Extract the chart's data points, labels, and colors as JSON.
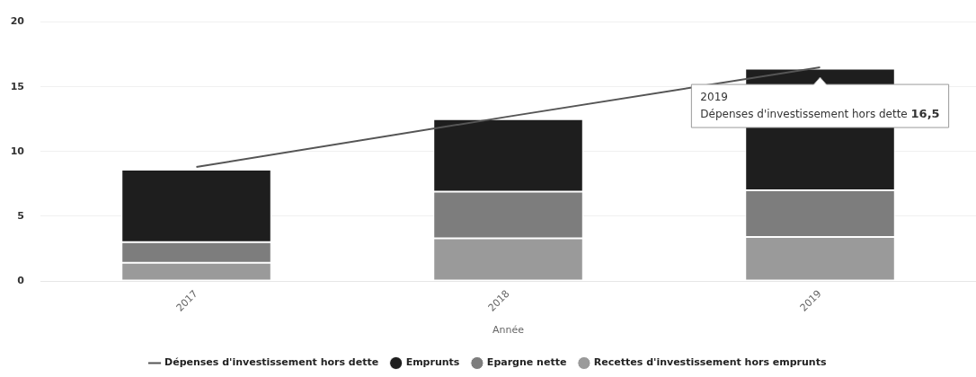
{
  "chart_data": {
    "type": "bar",
    "xlabel": "Année",
    "categories": [
      "2017",
      "2018",
      "2019"
    ],
    "stacked": true,
    "series": [
      {
        "name": "Recettes d'investissement hors emprunts",
        "color": "#9a9a9a",
        "values": [
          1.4,
          3.3,
          3.4
        ]
      },
      {
        "name": "Epargne nette",
        "color": "#7d7d7d",
        "values": [
          1.6,
          3.6,
          3.6
        ]
      },
      {
        "name": "Emprunts",
        "color": "#1e1e1e",
        "values": [
          5.6,
          5.6,
          9.4
        ]
      },
      {
        "name": "Dépenses d'investissement hors dette",
        "type": "line",
        "color": "#555555",
        "values": [
          8.8,
          12.7,
          16.5
        ]
      }
    ],
    "ylim": [
      0,
      20
    ],
    "yticks": [
      0,
      5,
      10,
      15,
      20
    ],
    "grid": "y",
    "legend": "bottom",
    "marker": "none",
    "annotations": [
      {
        "text": "2019\nDépenses d'investissement hors dette 16,5",
        "x": "2019",
        "y": 16.5
      }
    ]
  }
}
